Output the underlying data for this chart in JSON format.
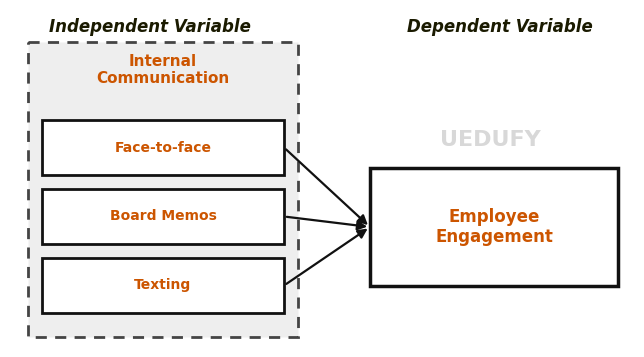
{
  "title_left": "Independent Variable",
  "title_right": "Dependent Variable",
  "left_box_label": "Internal\nCommunication",
  "sub_boxes": [
    "Face-to-face",
    "Board Memos",
    "Texting"
  ],
  "right_box_label": "Employee\nEngagement",
  "bg_color": "#ffffff",
  "box_facecolor": "#eeeeee",
  "sub_box_facecolor": "#ffffff",
  "right_box_facecolor": "#ffffff",
  "text_color": "#1a1a00",
  "title_color": "#1a1a00",
  "box_label_color": "#cc5500",
  "right_label_color": "#cc5500",
  "watermark_color": "#d8d8d8",
  "title_fontsize": 12,
  "label_fontsize": 11,
  "sub_label_fontsize": 10,
  "watermark_fontsize": 16
}
